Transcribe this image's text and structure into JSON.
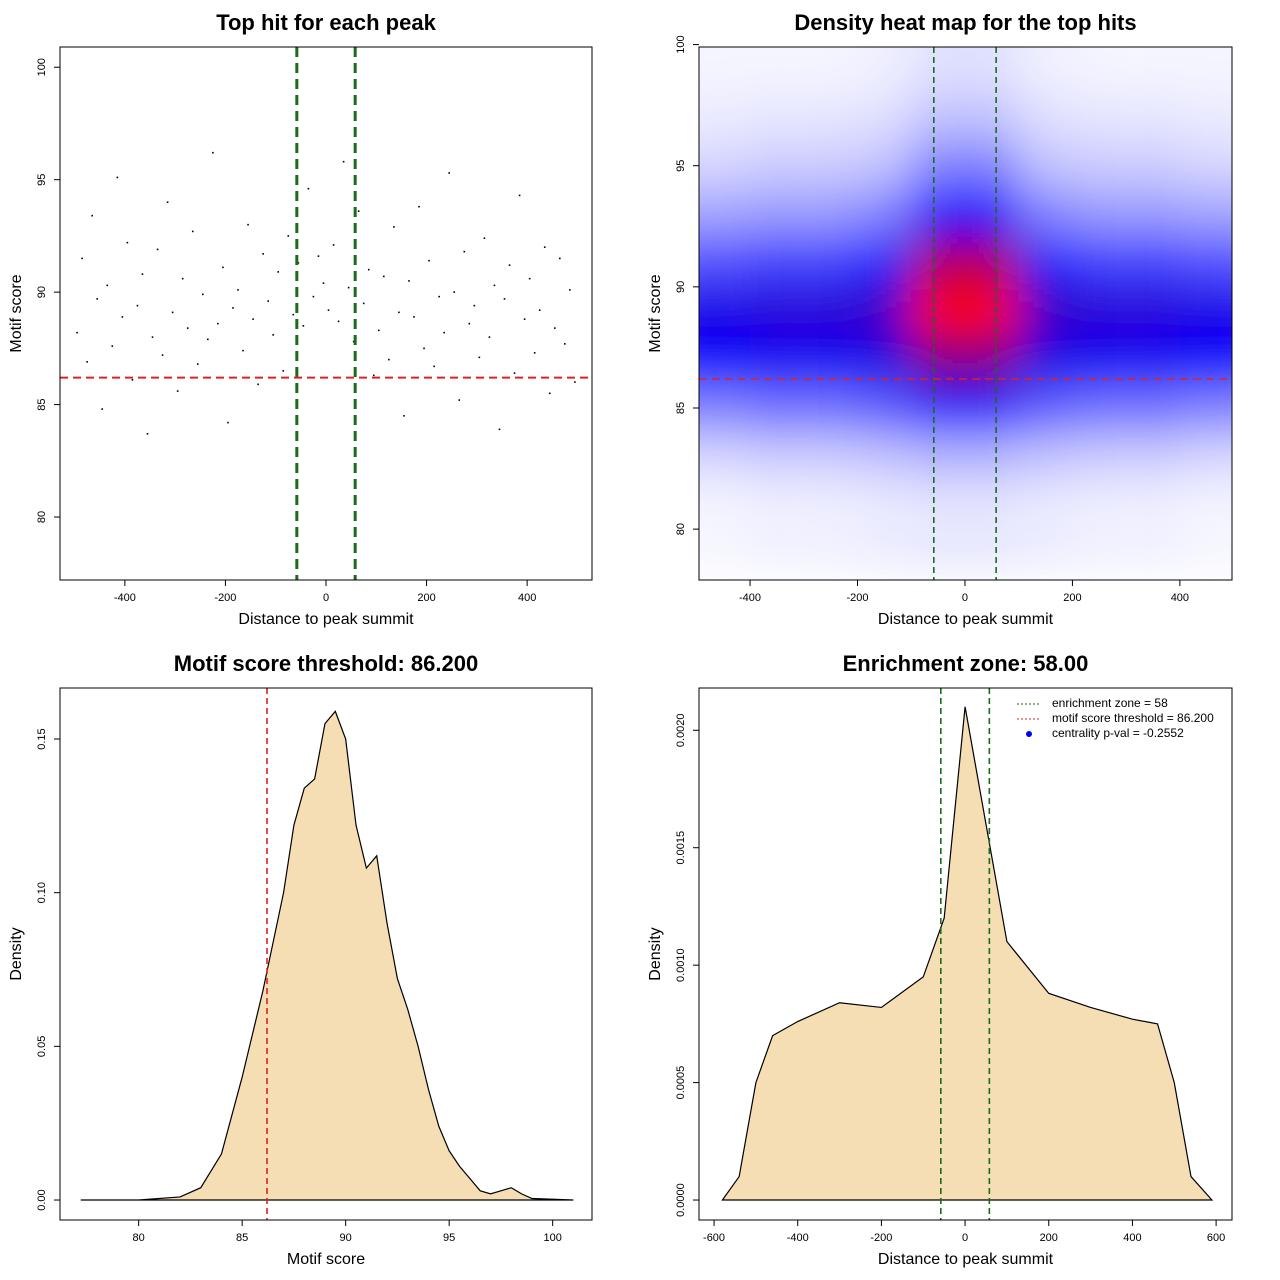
{
  "chart_data": [
    {
      "type": "scatter",
      "title": "Top hit for each peak",
      "xlabel": "Distance to peak summit",
      "ylabel": "Motif score",
      "x": [
        -495,
        -485,
        -475,
        -465,
        -455,
        -445,
        -435,
        -425,
        -415,
        -405,
        -395,
        -385,
        -375,
        -365,
        -355,
        -345,
        -335,
        -325,
        -315,
        -305,
        -295,
        -285,
        -275,
        -265,
        -255,
        -245,
        -235,
        -225,
        -215,
        -205,
        -195,
        -185,
        -175,
        -165,
        -155,
        -145,
        -135,
        -125,
        -115,
        -105,
        -95,
        -85,
        -75,
        -65,
        -55,
        -45,
        -35,
        -25,
        -15,
        -5,
        5,
        15,
        25,
        35,
        45,
        55,
        65,
        75,
        85,
        95,
        105,
        115,
        125,
        135,
        145,
        155,
        165,
        175,
        185,
        195,
        205,
        215,
        225,
        235,
        245,
        255,
        265,
        275,
        285,
        295,
        305,
        315,
        325,
        335,
        345,
        355,
        365,
        375,
        385,
        395,
        405,
        415,
        425,
        435,
        445,
        455,
        465,
        475,
        485,
        495
      ],
      "y": [
        88.2,
        91.5,
        86.9,
        93.4,
        89.7,
        84.8,
        90.3,
        87.6,
        95.1,
        88.9,
        92.2,
        86.1,
        89.4,
        90.8,
        83.7,
        88.0,
        91.9,
        87.2,
        94.0,
        89.1,
        85.6,
        90.6,
        88.4,
        92.7,
        86.8,
        89.9,
        87.9,
        96.2,
        88.6,
        91.1,
        84.2,
        89.3,
        90.1,
        87.4,
        93.0,
        88.8,
        85.9,
        91.7,
        89.6,
        88.1,
        90.9,
        86.5,
        92.5,
        89.0,
        91.3,
        88.5,
        94.6,
        89.8,
        91.6,
        90.4,
        89.2,
        92.1,
        88.7,
        95.8,
        90.2,
        87.8,
        93.6,
        89.5,
        91.0,
        86.3,
        88.3,
        90.7,
        87.0,
        92.9,
        89.1,
        84.5,
        90.5,
        88.9,
        93.8,
        87.5,
        91.4,
        86.7,
        89.8,
        88.2,
        95.3,
        90.0,
        85.2,
        91.8,
        88.6,
        89.4,
        87.1,
        92.4,
        88.0,
        90.3,
        83.9,
        89.7,
        91.2,
        86.4,
        94.3,
        88.8,
        90.6,
        87.3,
        89.2,
        92.0,
        85.5,
        88.4,
        91.5,
        87.7,
        90.1,
        86.0
      ],
      "color": "#000000",
      "xlim": [
        -529,
        529
      ],
      "ylim": [
        77.2,
        100.9
      ],
      "xticks": [
        -400,
        -200,
        0,
        200,
        400
      ],
      "yticks": [
        80,
        85,
        90,
        95,
        100
      ],
      "vlines": [
        -58,
        58
      ],
      "vline_color": "#1a6b1a",
      "hlines": [
        86.2
      ],
      "hline_color": "#e02020"
    },
    {
      "type": "heatmap",
      "title": "Density heat map for the top hits",
      "xlabel": "Distance to peak summit",
      "ylabel": "Motif score",
      "x": [
        -450,
        -350,
        -250,
        -150,
        -50,
        50,
        150,
        250,
        350,
        450
      ],
      "y": [
        81,
        83,
        85,
        87,
        89,
        91,
        93,
        95,
        97,
        99
      ],
      "z": [
        [
          0.02,
          0.03,
          0.03,
          0.04,
          0.05,
          0.05,
          0.04,
          0.03,
          0.03,
          0.02
        ],
        [
          0.08,
          0.1,
          0.1,
          0.12,
          0.15,
          0.15,
          0.12,
          0.1,
          0.1,
          0.08
        ],
        [
          0.25,
          0.28,
          0.28,
          0.32,
          0.45,
          0.45,
          0.32,
          0.28,
          0.28,
          0.25
        ],
        [
          0.5,
          0.52,
          0.52,
          0.55,
          0.75,
          0.75,
          0.55,
          0.52,
          0.52,
          0.5
        ],
        [
          0.55,
          0.58,
          0.58,
          0.62,
          1.0,
          1.0,
          0.62,
          0.58,
          0.58,
          0.55
        ],
        [
          0.35,
          0.38,
          0.38,
          0.45,
          0.85,
          0.85,
          0.45,
          0.38,
          0.38,
          0.35
        ],
        [
          0.18,
          0.2,
          0.2,
          0.25,
          0.5,
          0.5,
          0.25,
          0.2,
          0.2,
          0.18
        ],
        [
          0.08,
          0.1,
          0.1,
          0.12,
          0.25,
          0.25,
          0.12,
          0.1,
          0.1,
          0.08
        ],
        [
          0.04,
          0.05,
          0.05,
          0.06,
          0.12,
          0.12,
          0.06,
          0.05,
          0.05,
          0.04
        ],
        [
          0.02,
          0.02,
          0.02,
          0.03,
          0.06,
          0.06,
          0.03,
          0.02,
          0.02,
          0.02
        ]
      ],
      "colors": [
        "#ffffff",
        "#0000ff",
        "#ff0000"
      ],
      "xlim": [
        -495,
        497
      ],
      "ylim": [
        77.9,
        99.9
      ],
      "xticks": [
        -400,
        -200,
        0,
        200,
        400
      ],
      "yticks": [
        80,
        85,
        90,
        95,
        100
      ],
      "vlines": [
        -58,
        58
      ],
      "vline_color": "#1a6b1a",
      "hlines": [
        86.2
      ],
      "hline_color": "#e02020"
    },
    {
      "type": "area",
      "title": "Motif score threshold: 86.200",
      "xlabel": "Motif score",
      "ylabel": "Density",
      "x": [
        77.2,
        80,
        82,
        83,
        84,
        85,
        86,
        87,
        87.5,
        88,
        88.5,
        89,
        89.5,
        90,
        90.5,
        91,
        91.5,
        92,
        92.5,
        93,
        93.5,
        94,
        94.5,
        95,
        95.5,
        96,
        96.5,
        97,
        97.5,
        98,
        98.5,
        99,
        101
      ],
      "values": [
        0,
        0,
        0.001,
        0.004,
        0.015,
        0.04,
        0.068,
        0.1,
        0.122,
        0.134,
        0.137,
        0.155,
        0.159,
        0.15,
        0.122,
        0.108,
        0.112,
        0.09,
        0.072,
        0.062,
        0.05,
        0.036,
        0.024,
        0.016,
        0.011,
        0.007,
        0.003,
        0.002,
        0.003,
        0.004,
        0.002,
        0.0005,
        0
      ],
      "fill": "#f5deb3",
      "xlim": [
        76.2,
        101.9
      ],
      "ylim": [
        -0.0065,
        0.1666
      ],
      "xticks": [
        80,
        85,
        90,
        95,
        100
      ],
      "yticks": [
        {
          "value": 0,
          "label": "0.00"
        },
        {
          "value": 0.05,
          "label": "0.05"
        },
        {
          "value": 0.1,
          "label": "0.10"
        },
        {
          "value": 0.15,
          "label": "0.15"
        }
      ],
      "vlines": [
        86.2
      ],
      "vline_color": "#e02020"
    },
    {
      "type": "area",
      "title": "Enrichment zone: 58.00",
      "xlabel": "Distance to peak summit",
      "ylabel": "Density",
      "x": [
        -580,
        -540,
        -500,
        -460,
        -400,
        -300,
        -200,
        -100,
        -50,
        0,
        50,
        100,
        200,
        300,
        400,
        460,
        500,
        540,
        590
      ],
      "values": [
        0,
        0.0001,
        0.0005,
        0.0007,
        0.00076,
        0.00084,
        0.00082,
        0.00095,
        0.0012,
        0.0021,
        0.0016,
        0.0011,
        0.00088,
        0.00082,
        0.00077,
        0.00075,
        0.0005,
        0.0001,
        0
      ],
      "fill": "#f5deb3",
      "xlim": [
        -636,
        638
      ],
      "ylim": [
        -8.5e-05,
        0.00218
      ],
      "xticks": [
        -600,
        -400,
        -200,
        0,
        200,
        400,
        600
      ],
      "yticks": [
        {
          "value": 0,
          "label": "0.0000"
        },
        {
          "value": 0.0005,
          "label": "0.0005"
        },
        {
          "value": 0.001,
          "label": "0.0010"
        },
        {
          "value": 0.0015,
          "label": "0.0015"
        },
        {
          "value": 0.002,
          "label": "0.0020"
        }
      ],
      "vlines": [
        -58,
        58
      ],
      "vline_color": "#1a6b1a",
      "legend": [
        {
          "label": "enrichment zone = 58",
          "color": "#1a6b1a",
          "marker": "line"
        },
        {
          "label": "motif score threshold = 86.200",
          "color": "#e02020",
          "marker": "line"
        },
        {
          "label": "centrality p-val = -0.2552",
          "color": "#0000ff",
          "marker": "dot"
        }
      ]
    }
  ]
}
